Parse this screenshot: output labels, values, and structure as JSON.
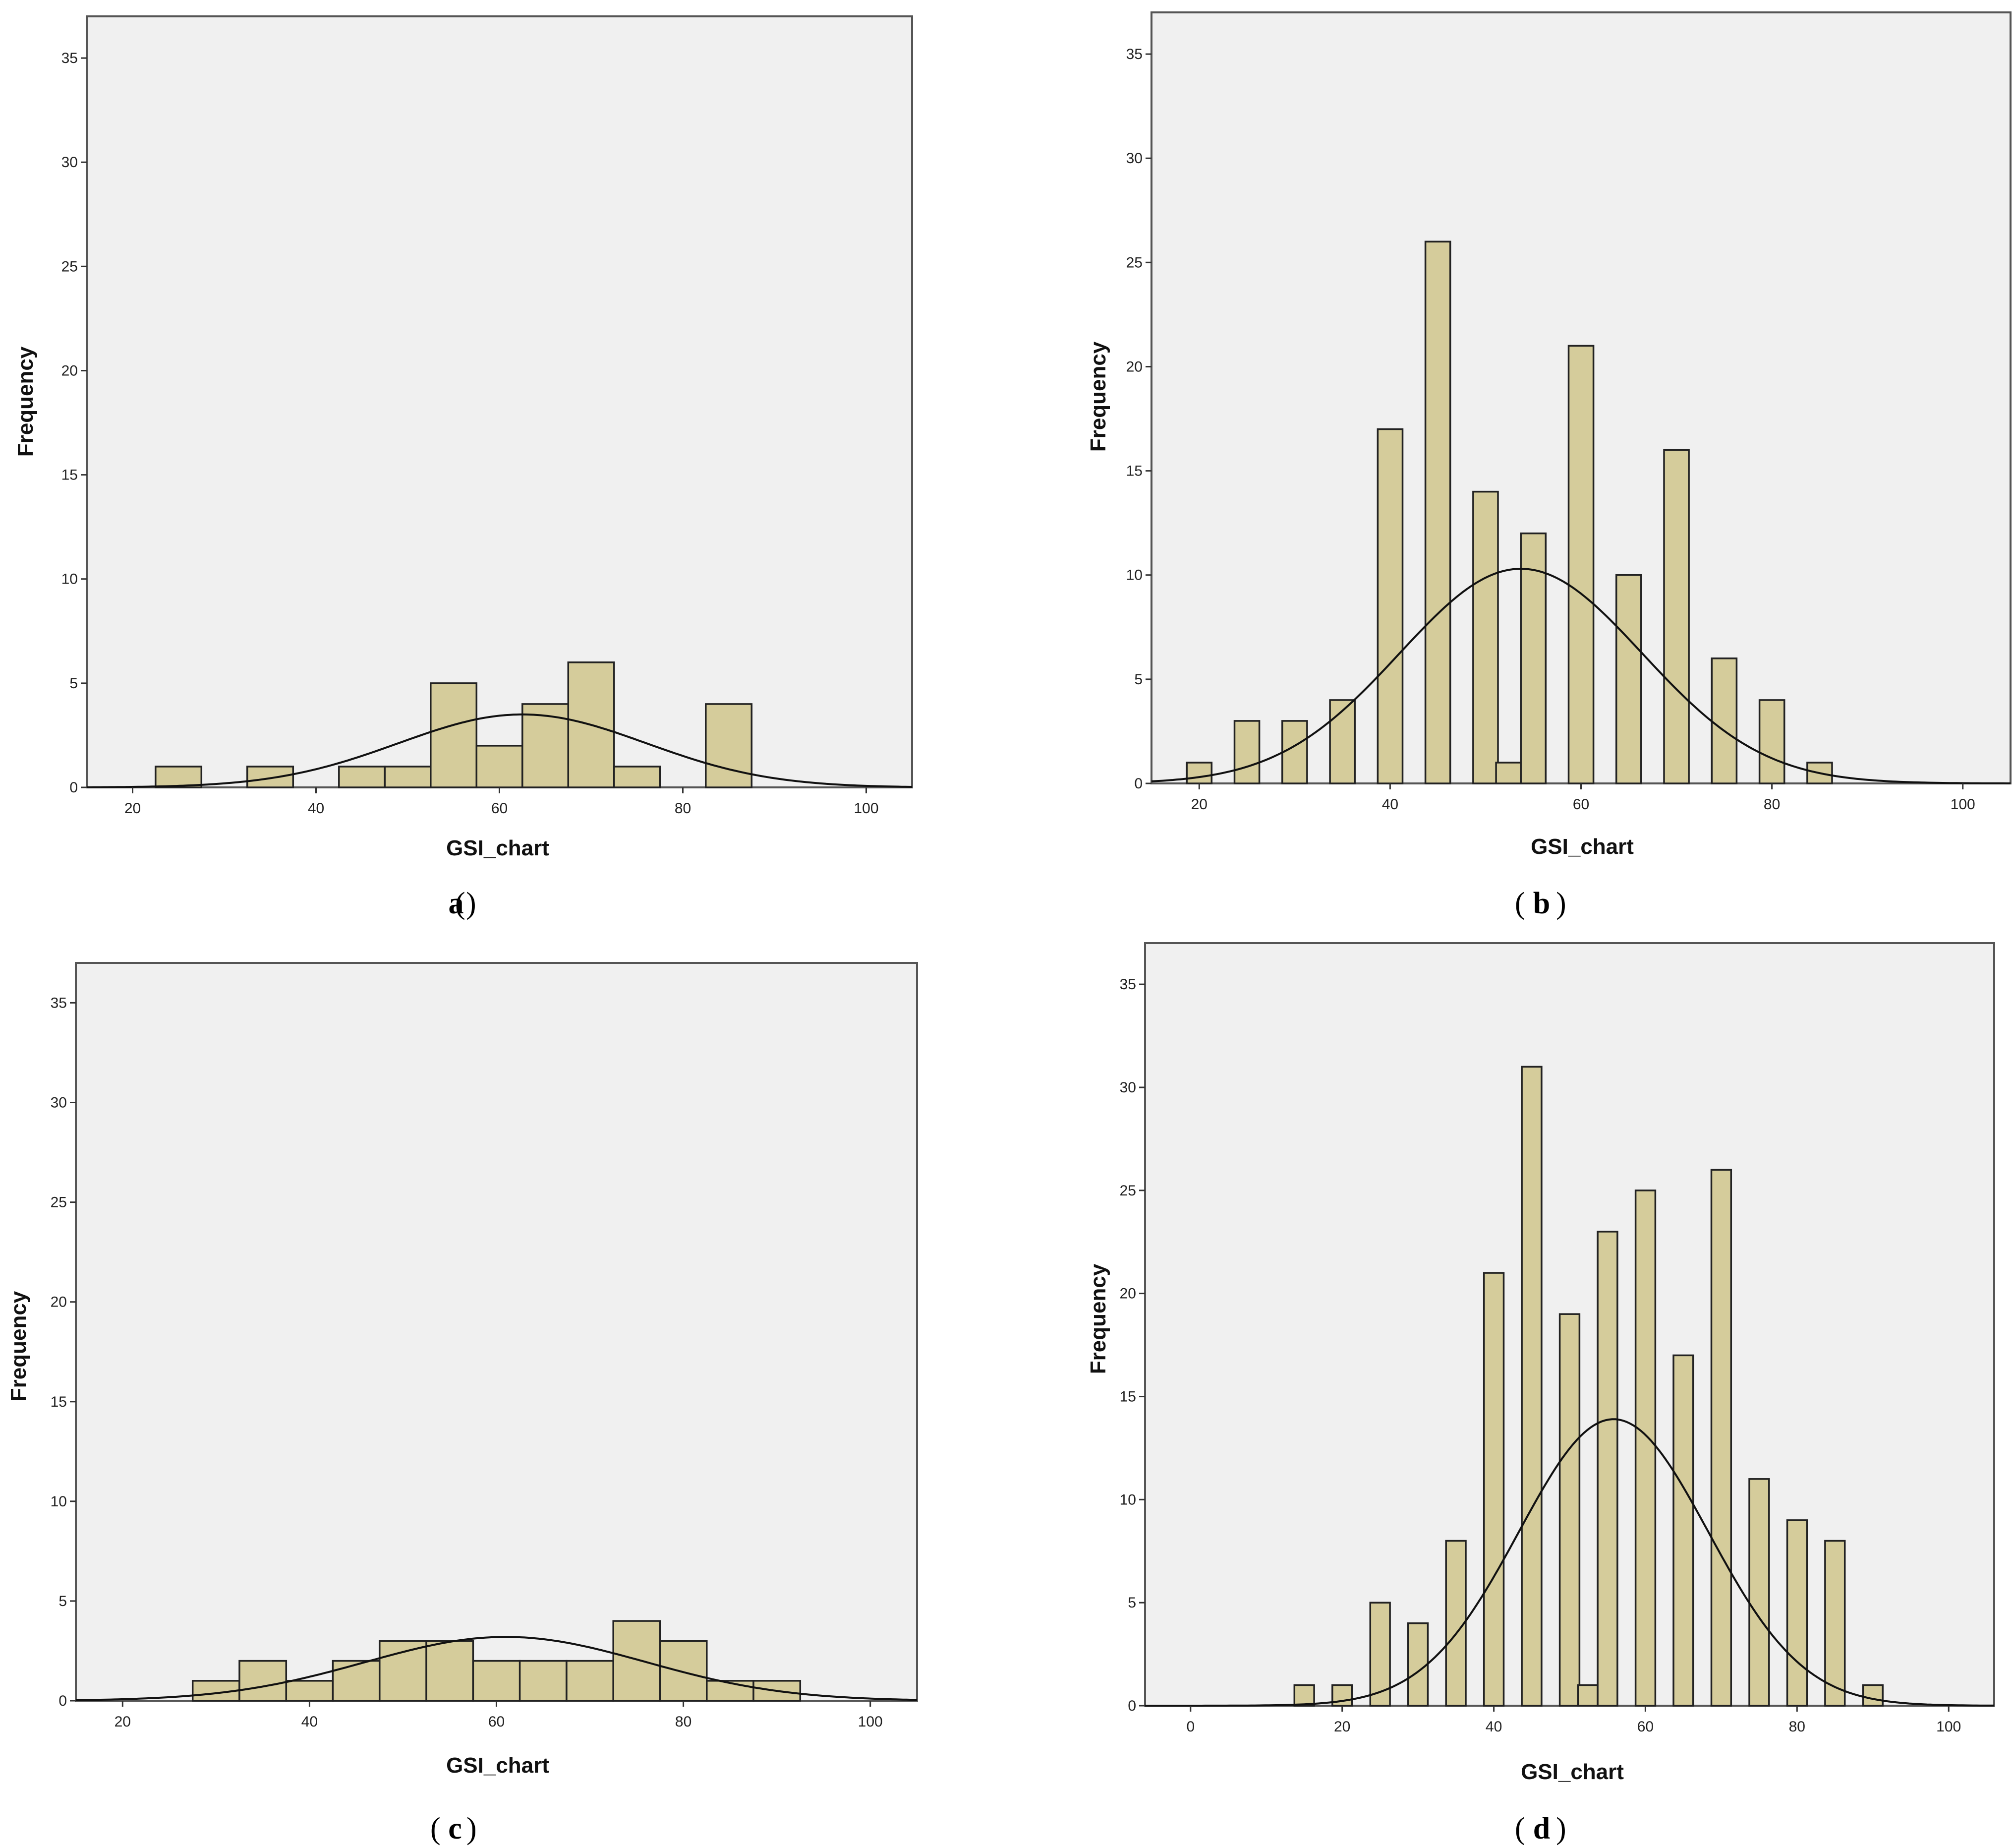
{
  "chart_data": [
    {
      "type": "bar",
      "panel": "a",
      "xlabel": "GSI_chart",
      "ylabel": "Frequency",
      "xlim": [
        15,
        105
      ],
      "ylim": [
        0,
        37
      ],
      "xticks": [
        20,
        40,
        60,
        80,
        100
      ],
      "yticks": [
        0,
        5,
        10,
        15,
        20,
        25,
        30,
        35
      ],
      "bin_width": 5,
      "bins": [
        {
          "start": 22.5,
          "count": 1
        },
        {
          "start": 32.5,
          "count": 1
        },
        {
          "start": 42.5,
          "count": 1
        },
        {
          "start": 47.5,
          "count": 1
        },
        {
          "start": 52.5,
          "count": 5
        },
        {
          "start": 57.5,
          "count": 2
        },
        {
          "start": 62.5,
          "count": 4
        },
        {
          "start": 67.5,
          "count": 6
        },
        {
          "start": 72.5,
          "count": 1
        },
        {
          "start": 82.5,
          "count": 4
        }
      ],
      "normal_curve": {
        "mean": 62.5,
        "peak": 3.5,
        "sd": 13.5
      }
    },
    {
      "type": "bar",
      "panel": "b",
      "xlabel": "GSI_chart",
      "ylabel": "Frequency",
      "xlim": [
        15,
        105
      ],
      "ylim": [
        0,
        37
      ],
      "xticks": [
        20,
        40,
        60,
        80,
        100
      ],
      "yticks": [
        0,
        5,
        10,
        15,
        20,
        25,
        30,
        35
      ],
      "bin_width": 2.6,
      "bins": [
        {
          "start": 18.7,
          "count": 1
        },
        {
          "start": 23.7,
          "count": 3
        },
        {
          "start": 28.7,
          "count": 3
        },
        {
          "start": 33.7,
          "count": 4
        },
        {
          "start": 38.7,
          "count": 17
        },
        {
          "start": 43.7,
          "count": 26
        },
        {
          "start": 48.7,
          "count": 14
        },
        {
          "start": 51.1,
          "count": 1
        },
        {
          "start": 53.7,
          "count": 12
        },
        {
          "start": 58.7,
          "count": 21
        },
        {
          "start": 63.7,
          "count": 10
        },
        {
          "start": 68.7,
          "count": 16
        },
        {
          "start": 73.7,
          "count": 6
        },
        {
          "start": 78.7,
          "count": 4
        },
        {
          "start": 83.7,
          "count": 1
        }
      ],
      "normal_curve": {
        "mean": 53.7,
        "peak": 10.3,
        "sd": 12.7
      }
    },
    {
      "type": "bar",
      "panel": "c",
      "xlabel": "GSI_chart",
      "ylabel": "Frequency",
      "xlim": [
        15,
        105
      ],
      "ylim": [
        0,
        37
      ],
      "xticks": [
        20,
        40,
        60,
        80,
        100
      ],
      "yticks": [
        0,
        5,
        10,
        15,
        20,
        25,
        30,
        35
      ],
      "bin_width": 5,
      "bins": [
        {
          "start": 27.5,
          "count": 1
        },
        {
          "start": 32.5,
          "count": 2
        },
        {
          "start": 37.5,
          "count": 1
        },
        {
          "start": 42.5,
          "count": 2
        },
        {
          "start": 47.5,
          "count": 3
        },
        {
          "start": 52.5,
          "count": 3
        },
        {
          "start": 57.5,
          "count": 2
        },
        {
          "start": 62.5,
          "count": 2
        },
        {
          "start": 67.5,
          "count": 2
        },
        {
          "start": 72.5,
          "count": 4
        },
        {
          "start": 77.5,
          "count": 3
        },
        {
          "start": 82.5,
          "count": 1
        },
        {
          "start": 87.5,
          "count": 1
        }
      ],
      "normal_curve": {
        "mean": 61,
        "peak": 3.2,
        "sd": 15
      }
    },
    {
      "type": "bar",
      "panel": "d",
      "xlabel": "GSI_chart",
      "ylabel": "Frequency",
      "xlim": [
        -6,
        106
      ],
      "ylim": [
        0,
        37
      ],
      "xticks": [
        0,
        20,
        40,
        60,
        80,
        100
      ],
      "yticks": [
        0,
        5,
        10,
        15,
        20,
        25,
        30,
        35
      ],
      "bin_width": 2.6,
      "bins": [
        {
          "start": 13.7,
          "count": 1
        },
        {
          "start": 18.7,
          "count": 1
        },
        {
          "start": 23.7,
          "count": 5
        },
        {
          "start": 28.7,
          "count": 4
        },
        {
          "start": 33.7,
          "count": 8
        },
        {
          "start": 38.7,
          "count": 21
        },
        {
          "start": 43.7,
          "count": 31
        },
        {
          "start": 48.7,
          "count": 19
        },
        {
          "start": 51.1,
          "count": 1
        },
        {
          "start": 53.7,
          "count": 23
        },
        {
          "start": 58.7,
          "count": 25
        },
        {
          "start": 63.7,
          "count": 17
        },
        {
          "start": 68.7,
          "count": 26
        },
        {
          "start": 73.7,
          "count": 11
        },
        {
          "start": 78.7,
          "count": 9
        },
        {
          "start": 83.7,
          "count": 8
        },
        {
          "start": 88.7,
          "count": 1
        }
      ],
      "normal_curve": {
        "mean": 55.8,
        "peak": 13.9,
        "sd": 12.5
      }
    }
  ],
  "panel_labels": [
    "a",
    "b",
    "c",
    "d"
  ]
}
